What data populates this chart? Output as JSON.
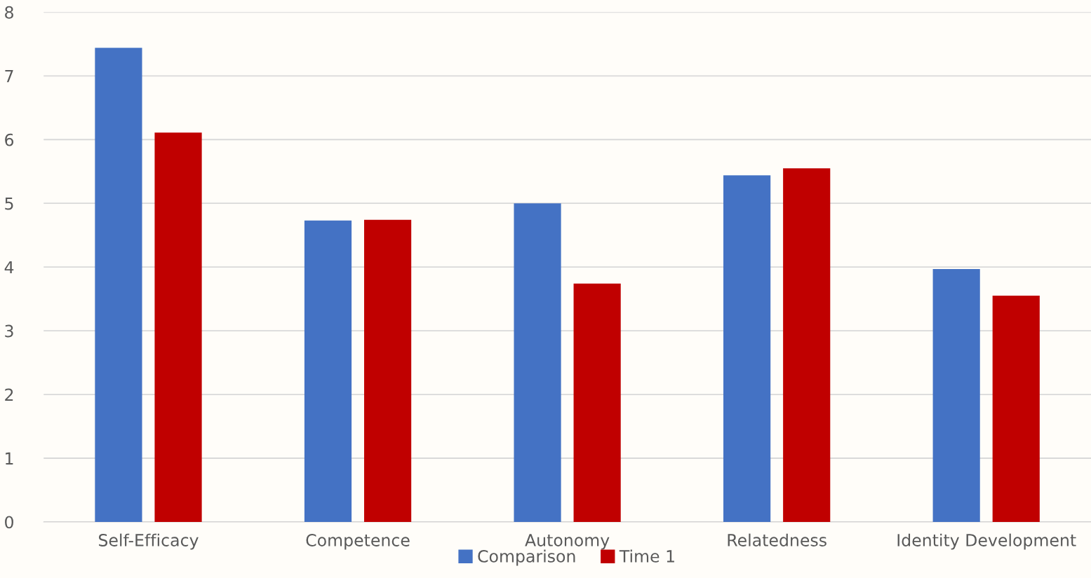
{
  "chart_data": {
    "type": "bar",
    "categories": [
      "Self-Efficacy",
      "Competence",
      "Autonomy",
      "Relatedness",
      "Identity Development"
    ],
    "series": [
      {
        "name": "Comparison",
        "color": "#4472c4",
        "values": [
          7.44,
          4.73,
          5.0,
          5.44,
          3.97
        ]
      },
      {
        "name": "Time 1",
        "color": "#c00000",
        "values": [
          6.11,
          4.74,
          3.74,
          5.55,
          3.55
        ]
      }
    ],
    "ylim": [
      0,
      8
    ],
    "yticks": [
      0,
      1,
      2,
      3,
      4,
      5,
      6,
      7,
      8
    ],
    "grid": "y",
    "legend": "bottom"
  }
}
